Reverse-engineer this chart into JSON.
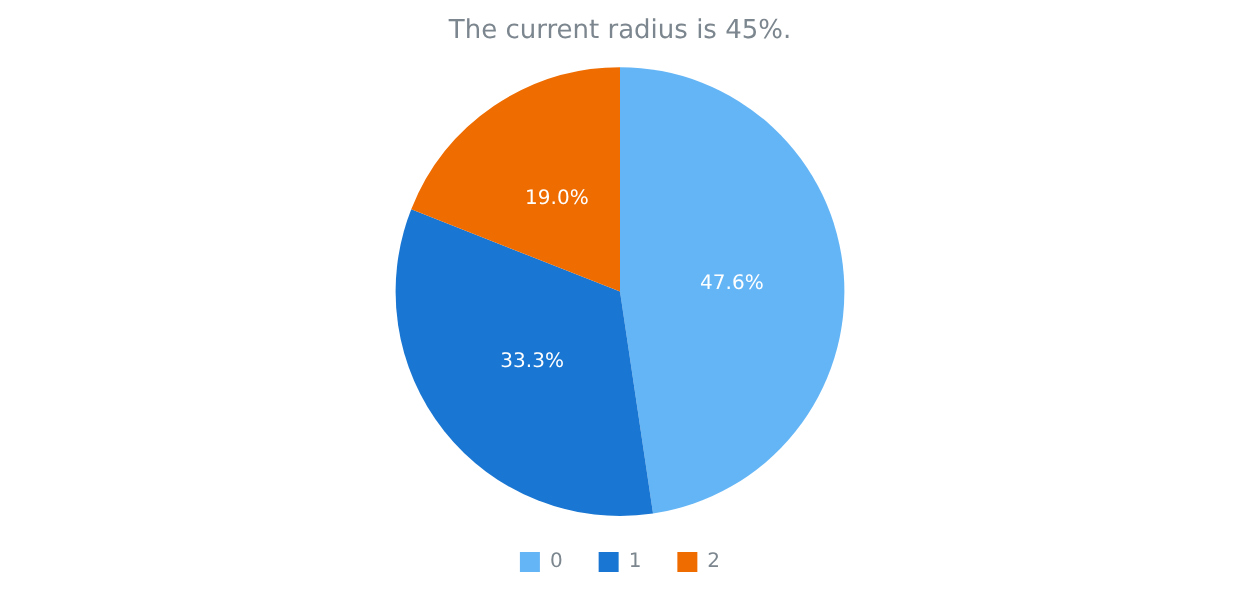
{
  "chart_data": {
    "type": "pie",
    "title": "The current radius is 45%.",
    "categories": [
      "0",
      "1",
      "2"
    ],
    "values": [
      47.6,
      33.3,
      19.0
    ],
    "colors": [
      "#64b5f6",
      "#1976d2",
      "#ef6c00"
    ],
    "value_labels": [
      "47.6%",
      "33.3%",
      "19.0%"
    ],
    "legend": "bottom"
  }
}
